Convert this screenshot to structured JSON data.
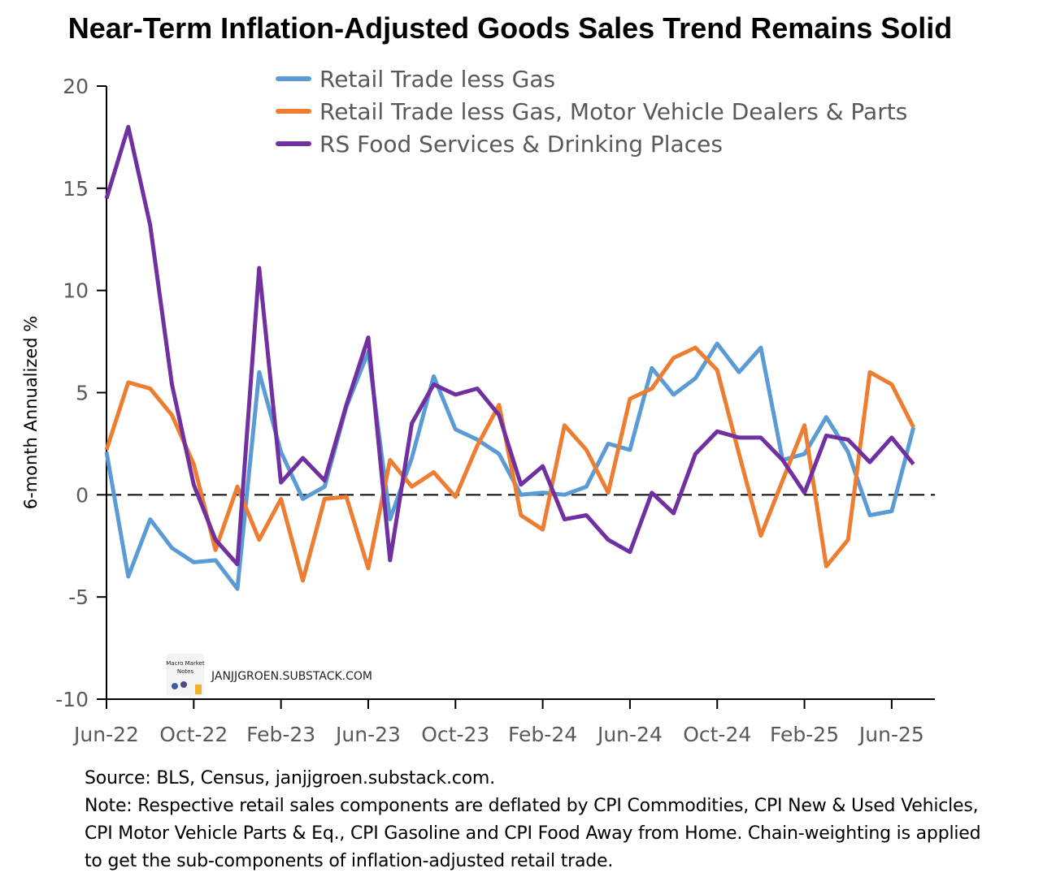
{
  "chart_data": {
    "type": "line",
    "title": "Near-Term Inflation-Adjusted Goods Sales Trend Remains Solid",
    "xlabel": "",
    "ylabel": "6-month Annualized %",
    "ylim": [
      -10,
      20
    ],
    "yticks": [
      20,
      15,
      10,
      5,
      0,
      -5,
      -10
    ],
    "ytick_labels": [
      "20",
      "15",
      "10",
      "5",
      "0",
      "-5",
      "-10"
    ],
    "x_tick_labels": [
      "Jun-22",
      "Oct-22",
      "Feb-23",
      "Jun-23",
      "Oct-23",
      "Feb-24",
      "Jun-24",
      "Oct-24",
      "Feb-25",
      "Jun-25"
    ],
    "x_tick_month_index": [
      0,
      4,
      8,
      12,
      16,
      20,
      24,
      28,
      32,
      36
    ],
    "x_start": "Jun-22",
    "x_end": "Jul-25",
    "grid": false,
    "legend_position": "top",
    "reference_line": {
      "value": 0,
      "style": "dashed"
    },
    "series": [
      {
        "name": "Retail Trade less Gas",
        "color": "#5B9BD5",
        "values": [
          2.1,
          -4.0,
          -1.2,
          -2.6,
          -3.3,
          -3.2,
          -4.6,
          6.0,
          2.1,
          -0.2,
          0.4,
          4.3,
          7.0,
          -1.2,
          1.8,
          5.8,
          3.2,
          2.7,
          2.0,
          0.0,
          0.1,
          0.0,
          0.4,
          2.5,
          2.2,
          6.2,
          4.9,
          5.7,
          7.4,
          6.0,
          7.2,
          1.7,
          2.0,
          3.8,
          2.1,
          -1.0,
          -0.8,
          3.3
        ]
      },
      {
        "name": "Retail Trade less Gas, Motor Vehicle Dealers & Parts",
        "color": "#ED7D31",
        "values": [
          2.2,
          5.5,
          5.2,
          3.9,
          1.5,
          -2.7,
          0.4,
          -2.2,
          -0.2,
          -4.2,
          -0.2,
          -0.1,
          -3.6,
          1.7,
          0.4,
          1.1,
          -0.1,
          2.4,
          4.4,
          -1.0,
          -1.7,
          3.4,
          2.2,
          0.1,
          4.7,
          5.2,
          6.7,
          7.2,
          6.1,
          2.0,
          -2.0,
          0.7,
          3.4,
          -3.5,
          -2.2,
          6.0,
          5.4,
          3.3
        ]
      },
      {
        "name": "RS Food Services & Drinking Places",
        "color": "#7030A0",
        "values": [
          14.5,
          18.0,
          13.2,
          5.4,
          0.5,
          -2.2,
          -3.4,
          11.1,
          0.6,
          1.8,
          0.7,
          4.4,
          7.7,
          -3.2,
          3.5,
          5.4,
          4.9,
          5.2,
          3.9,
          0.5,
          1.4,
          -1.2,
          -1.0,
          -2.2,
          -2.8,
          0.1,
          -0.9,
          2.0,
          3.1,
          2.8,
          2.8,
          1.7,
          0.1,
          2.9,
          2.7,
          1.6,
          2.8,
          1.5
        ]
      }
    ]
  },
  "watermark": {
    "logo_text": "Macro Market Notes",
    "site": "JANJJGROEN.SUBSTACK.COM"
  },
  "notes": {
    "source": "Source: BLS, Census, janjjgroen.substack.com.",
    "note_line1": "Note: Respective retail sales components are deflated by CPI Commodities, CPI New & Used Vehicles,",
    "note_line2": "CPI Motor Vehicle Parts & Eq., CPI Gasoline and CPI Food Away from Home. Chain-weighting is applied",
    "note_line3": "to get the sub-components of inflation-adjusted retail trade."
  }
}
